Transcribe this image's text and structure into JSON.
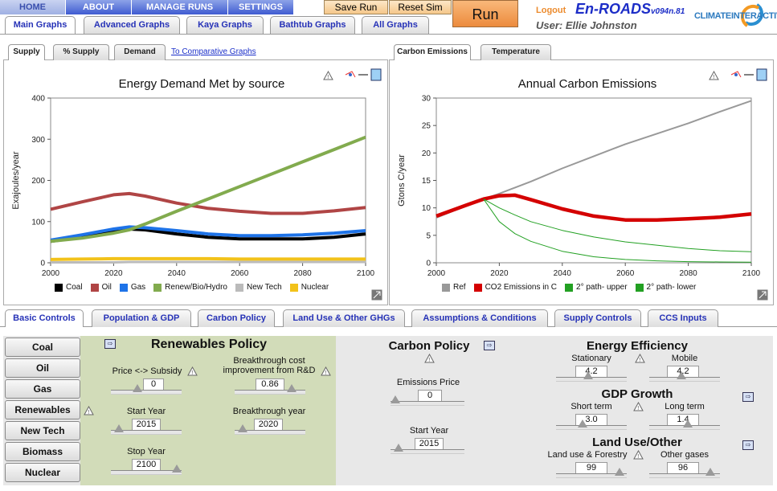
{
  "topnav": {
    "home": "HOME",
    "about": "ABOUT",
    "manage_runs": "MANAGE RUNS",
    "settings": "SETTINGS"
  },
  "toolbar": {
    "save_run": "Save Run",
    "reset_sim": "Reset Sim",
    "run": "Run"
  },
  "header": {
    "logout": "Logout",
    "app_name": "En-ROADS",
    "version": "v094n.81",
    "user": "User: Ellie Johnston",
    "logo": "CLIMATEINTERACTIVE"
  },
  "graph_tabs": [
    "Main Graphs",
    "Advanced Graphs",
    "Kaya Graphs",
    "Bathtub Graphs",
    "All Graphs"
  ],
  "left_subtabs": [
    "Supply",
    "% Supply",
    "Demand"
  ],
  "comparative_link": "To Comparative Graphs",
  "right_subtabs": [
    "Carbon Emissions",
    "Temperature"
  ],
  "chart_data": [
    {
      "type": "line",
      "title": "Energy Demand Met by source",
      "xlabel": "",
      "ylabel": "Exajoules/year",
      "xlim": [
        2000,
        2100
      ],
      "ylim": [
        0,
        400
      ],
      "x_ticks": [
        "2000",
        "2020",
        "2040",
        "2060",
        "2080",
        "2100"
      ],
      "y_ticks": [
        "0",
        "100",
        "200",
        "300",
        "400"
      ],
      "x": [
        2000,
        2010,
        2020,
        2025,
        2030,
        2040,
        2050,
        2060,
        2070,
        2080,
        2090,
        2100
      ],
      "series": [
        {
          "name": "Coal",
          "color": "#000000",
          "values": [
            52,
            62,
            78,
            82,
            80,
            70,
            62,
            58,
            58,
            58,
            62,
            70
          ]
        },
        {
          "name": "Oil",
          "color": "#b04545",
          "values": [
            130,
            148,
            165,
            168,
            162,
            145,
            132,
            125,
            120,
            120,
            126,
            134
          ]
        },
        {
          "name": "Gas",
          "color": "#1e73e8",
          "values": [
            55,
            68,
            82,
            87,
            85,
            78,
            70,
            66,
            66,
            68,
            72,
            78
          ]
        },
        {
          "name": "Renew/Bio/Hydro",
          "color": "#82ab4e",
          "values": [
            52,
            60,
            72,
            80,
            94,
            125,
            155,
            185,
            215,
            245,
            275,
            305
          ]
        },
        {
          "name": "New Tech",
          "color": "#bbbbbb",
          "values": [
            1,
            1,
            1,
            2,
            2,
            2,
            2,
            2,
            2,
            2,
            2,
            2
          ]
        },
        {
          "name": "Nuclear",
          "color": "#f2c21a",
          "values": [
            8,
            9,
            10,
            10,
            10,
            10,
            10,
            9,
            9,
            9,
            9,
            9
          ]
        }
      ]
    },
    {
      "type": "line",
      "title": "Annual Carbon Emissions",
      "xlabel": "",
      "ylabel": "Gtons C/year",
      "xlim": [
        2000,
        2100
      ],
      "ylim": [
        0,
        30
      ],
      "x_ticks": [
        "2000",
        "2020",
        "2040",
        "2060",
        "2080",
        "2100"
      ],
      "y_ticks": [
        "0",
        "5",
        "10",
        "15",
        "20",
        "25",
        "30"
      ],
      "x": [
        2000,
        2010,
        2015,
        2020,
        2025,
        2030,
        2040,
        2050,
        2060,
        2070,
        2080,
        2090,
        2100
      ],
      "series": [
        {
          "name": "Ref",
          "color": "#999999",
          "values": [
            8.2,
            10.5,
            11.6,
            12.6,
            13.7,
            14.8,
            17.2,
            19.4,
            21.6,
            23.5,
            25.4,
            27.5,
            29.5
          ]
        },
        {
          "name": "CO2 Emissions in C",
          "color": "#d40000",
          "values": [
            8.5,
            10.6,
            11.6,
            12.2,
            12.3,
            11.5,
            9.8,
            8.5,
            7.8,
            7.8,
            8.0,
            8.3,
            8.9
          ]
        },
        {
          "name": "2° path- upper",
          "color": "#22a022",
          "values": [
            null,
            null,
            11.6,
            10.0,
            8.7,
            7.5,
            5.9,
            4.7,
            3.8,
            3.2,
            2.6,
            2.2,
            2.0
          ]
        },
        {
          "name": "2° path- lower",
          "color": "#22a022",
          "values": [
            null,
            null,
            11.6,
            7.5,
            5.3,
            3.9,
            2.1,
            1.1,
            0.6,
            0.35,
            0.2,
            0.15,
            0.1
          ]
        }
      ]
    }
  ],
  "legend_left": [
    "Coal",
    "Oil",
    "Gas",
    "Renew/Bio/Hydro",
    "New Tech",
    "Nuclear"
  ],
  "legend_right": [
    "Ref",
    "CO2 Emissions in C",
    "2° path- upper",
    "2° path- lower"
  ],
  "control_tabs": [
    "Basic Controls",
    "Population & GDP",
    "Carbon Policy",
    "Land Use & Other GHGs",
    "Assumptions & Conditions",
    "Supply Controls",
    "CCS Inputs"
  ],
  "sources": [
    "Coal",
    "Oil",
    "Gas",
    "Renewables",
    "New Tech",
    "Biomass",
    "Nuclear"
  ],
  "renewables": {
    "title": "Renewables Policy",
    "price_label": "Price <-> Subsidy",
    "price_value": "0",
    "breakthrough_cost_label": "Breakthrough cost improvement from R&D",
    "breakthrough_cost_value": "0.86",
    "start_label": "Start Year",
    "start_value": "2015",
    "breakthrough_year_label": "Breakthrough year",
    "breakthrough_year_value": "2020",
    "stop_label": "Stop Year",
    "stop_value": "2100"
  },
  "carbon": {
    "title": "Carbon Policy",
    "price_label": "Emissions Price",
    "price_value": "0",
    "start_label": "Start Year",
    "start_value": "2015"
  },
  "efficiency": {
    "title": "Energy Efficiency",
    "stationary_label": "Stationary",
    "stationary_value": "4.2",
    "mobile_label": "Mobile",
    "mobile_value": "4.2"
  },
  "gdp": {
    "title": "GDP Growth",
    "short_label": "Short term",
    "short_value": "3.0",
    "long_label": "Long term",
    "long_value": "1.4"
  },
  "landuse": {
    "title": "Land Use/Other",
    "forestry_label": "Land use & Forestry",
    "forestry_value": "99",
    "gases_label": "Other gases",
    "gases_value": "96"
  },
  "sliders": {
    "price": 0.35,
    "breakthrough_cost": 0.86,
    "start": 0.05,
    "breakthrough_year": 0.05,
    "stop": 1.0,
    "carbon_price": 0.0,
    "carbon_start": 0.05,
    "stationary": 0.45,
    "mobile": 0.45,
    "short": 0.35,
    "long": 0.55,
    "forestry": 0.96,
    "gases": 0.92
  }
}
